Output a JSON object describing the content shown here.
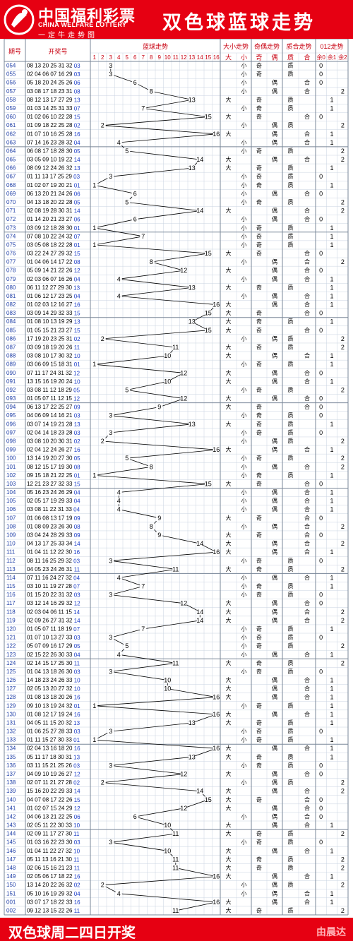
{
  "header": {
    "logo_cn": "中国福利彩票",
    "logo_en": "CHINA WELFARE LOTTERY",
    "logo_sub": "一定牛走势图",
    "title": "双色球蓝球走势"
  },
  "columns": {
    "period": "期号",
    "numbers": "开奖号",
    "blue_trend": "蓝球走势",
    "size_trend": "大小走势",
    "parity_trend": "奇偶走势",
    "prime_trend": "质合走势",
    "mod3_trend": "012走势",
    "big": "大",
    "small": "小",
    "odd": "奇",
    "even": "偶",
    "prime": "质",
    "composite": "合",
    "rem0": "余0",
    "rem1": "余1",
    "rem2": "余2"
  },
  "ball_headers": [
    "1",
    "2",
    "3",
    "4",
    "5",
    "6",
    "7",
    "8",
    "9",
    "10",
    "11",
    "12",
    "13",
    "14",
    "15",
    "16"
  ],
  "rows": [
    {
      "p": "054",
      "n": "08 13 20 25 31 32",
      "b": 3
    },
    {
      "p": "055",
      "n": "02 04 06 07 16 29",
      "b": 3
    },
    {
      "p": "056",
      "n": "05 18 20 24 25 26",
      "b": 6
    },
    {
      "p": "057",
      "n": "03 08 17 18 23 31",
      "b": 8
    },
    {
      "p": "058",
      "n": "08 12 13 17 27 29",
      "b": 13
    },
    {
      "p": "059",
      "n": "01 03 14 25 31 33",
      "b": 7
    },
    {
      "p": "060",
      "n": "01 02 06 10 22 28",
      "b": 15
    },
    {
      "p": "061",
      "n": "01 09 18 22 25 28",
      "b": 2
    },
    {
      "p": "062",
      "n": "01 07 10 16 25 28",
      "b": 16
    },
    {
      "p": "063",
      "n": "07 14 16 23 28 32",
      "b": 4
    },
    {
      "p": "064",
      "n": "06 08 17 18 28 30",
      "b": 5
    },
    {
      "p": "065",
      "n": "03 05 09 10 19 22",
      "b": 14
    },
    {
      "p": "066",
      "n": "08 09 12 24 26 32",
      "b": 13
    },
    {
      "p": "067",
      "n": "01 11 13 17 25 29",
      "b": 3
    },
    {
      "p": "068",
      "n": "01 02 07 19 20 21",
      "b": 1
    },
    {
      "p": "069",
      "n": "06 13 20 21 24 26",
      "b": 6
    },
    {
      "p": "070",
      "n": "04 13 18 20 22 28",
      "b": 5
    },
    {
      "p": "071",
      "n": "02 08 19 28 30 31",
      "b": 14
    },
    {
      "p": "072",
      "n": "01 14 20 21 23 27",
      "b": 6
    },
    {
      "p": "073",
      "n": "03 09 12 18 28 30",
      "b": 1
    },
    {
      "p": "074",
      "n": "07 08 10 22 24 32",
      "b": 7
    },
    {
      "p": "075",
      "n": "03 05 08 18 22 28",
      "b": 1
    },
    {
      "p": "076",
      "n": "03 22 24 27 29 32",
      "b": 15
    },
    {
      "p": "077",
      "n": "01 04 06 14 17 22",
      "b": 8
    },
    {
      "p": "078",
      "n": "05 09 14 21 22 26",
      "b": 12
    },
    {
      "p": "079",
      "n": "02 03 06 07 16 26",
      "b": 4
    },
    {
      "p": "080",
      "n": "06 11 12 27 29 30",
      "b": 13
    },
    {
      "p": "081",
      "n": "01 06 12 17 23 25",
      "b": 4
    },
    {
      "p": "082",
      "n": "01 02 03 12 16 27",
      "b": 16
    },
    {
      "p": "083",
      "n": "03 09 14 29 32 33",
      "b": 15
    },
    {
      "p": "084",
      "n": "01 08 10 13 19 29",
      "b": 13
    },
    {
      "p": "085",
      "n": "01 05 15 21 23 27",
      "b": 15
    },
    {
      "p": "086",
      "n": "17 19 20 23 25 31",
      "b": 2
    },
    {
      "p": "087",
      "n": "03 09 18 19 20 26",
      "b": 11
    },
    {
      "p": "088",
      "n": "03 08 10 17 30 32",
      "b": 10
    },
    {
      "p": "089",
      "n": "03 06 09 15 18 31",
      "b": 1
    },
    {
      "p": "090",
      "n": "07 11 17 24 31 32",
      "b": 12
    },
    {
      "p": "091",
      "n": "13 15 16 19 20 24",
      "b": 10
    },
    {
      "p": "092",
      "n": "03 08 11 12 18 29",
      "b": 5
    },
    {
      "p": "093",
      "n": "01 05 07 11 12 15",
      "b": 12
    },
    {
      "p": "094",
      "n": "06 13 17 22 25 27",
      "b": 9
    },
    {
      "p": "095",
      "n": "04 06 09 14 16 21",
      "b": 3
    },
    {
      "p": "096",
      "n": "03 07 14 19 21 28",
      "b": 13
    },
    {
      "p": "097",
      "n": "02 04 14 18 23 28",
      "b": 3
    },
    {
      "p": "098",
      "n": "03 08 10 20 30 31",
      "b": 2
    },
    {
      "p": "099",
      "n": "02 04 12 24 26 27",
      "b": 16
    },
    {
      "p": "100",
      "n": "13 14 19 20 27 30",
      "b": 5
    },
    {
      "p": "101",
      "n": "08 12 15 17 19 30",
      "b": 8
    },
    {
      "p": "102",
      "n": "09 15 18 21 22 25",
      "b": 1
    },
    {
      "p": "103",
      "n": "12 21 23 27 32 33",
      "b": 15
    },
    {
      "p": "104",
      "n": "05 16 23 24 26 29",
      "b": 4
    },
    {
      "p": "105",
      "n": "02 05 17 19 29 33",
      "b": 4
    },
    {
      "p": "106",
      "n": "03 08 11 22 31 33",
      "b": 4
    },
    {
      "p": "107",
      "n": "01 06 08 13 17 19",
      "b": 9
    },
    {
      "p": "108",
      "n": "01 08 09 23 26 30",
      "b": 8
    },
    {
      "p": "109",
      "n": "03 04 24 28 29 33",
      "b": 9
    },
    {
      "p": "110",
      "n": "04 13 17 25 33 34",
      "b": 14
    },
    {
      "p": "111",
      "n": "01 04 11 12 22 30",
      "b": 16
    },
    {
      "p": "112",
      "n": "08 11 16 25 29 32",
      "b": 3
    },
    {
      "p": "113",
      "n": "04 05 23 24 26 31",
      "b": 11
    },
    {
      "p": "114",
      "n": "07 11 16 24 27 32",
      "b": 4
    },
    {
      "p": "115",
      "n": "03 10 11 19 27 28",
      "b": 7
    },
    {
      "p": "116",
      "n": "01 15 20 22 31 32",
      "b": 3
    },
    {
      "p": "117",
      "n": "03 12 14 16 29 32",
      "b": 12
    },
    {
      "p": "118",
      "n": "02 03 04 06 11 15",
      "b": 14
    },
    {
      "p": "119",
      "n": "02 09 26 27 31 32",
      "b": 14
    },
    {
      "p": "120",
      "n": "01 05 07 11 18 19",
      "b": 7
    },
    {
      "p": "121",
      "n": "01 07 10 13 27 33",
      "b": 3
    },
    {
      "p": "122",
      "n": "05 07 09 16 17 29",
      "b": 5
    },
    {
      "p": "123",
      "n": "02 15 22 26 30 33",
      "b": 4
    },
    {
      "p": "124",
      "n": "02 14 15 17 25 30",
      "b": 11
    },
    {
      "p": "125",
      "n": "01 04 13 18 26 30",
      "b": 3
    },
    {
      "p": "126",
      "n": "14 18 23 24 26 33",
      "b": 10
    },
    {
      "p": "127",
      "n": "02 05 13 20 27 32",
      "b": 10
    },
    {
      "p": "128",
      "n": "01 08 13 18 20 26",
      "b": 16
    },
    {
      "p": "129",
      "n": "09 10 13 19 24 32",
      "b": 1
    },
    {
      "p": "130",
      "n": "01 08 12 17 19 24",
      "b": 16
    },
    {
      "p": "131",
      "n": "04 05 11 15 20 32",
      "b": 13
    },
    {
      "p": "132",
      "n": "01 06 25 27 28 33",
      "b": 3
    },
    {
      "p": "133",
      "n": "01 11 15 27 30 33",
      "b": 1
    },
    {
      "p": "134",
      "n": "02 04 13 16 18 20",
      "b": 16
    },
    {
      "p": "135",
      "n": "05 11 17 18 30 31",
      "b": 13
    },
    {
      "p": "136",
      "n": "03 11 15 21 25 26",
      "b": 3
    },
    {
      "p": "137",
      "n": "04 09 10 19 26 27",
      "b": 12
    },
    {
      "p": "138",
      "n": "02 07 11 21 27 28",
      "b": 2
    },
    {
      "p": "139",
      "n": "15 16 20 22 29 33",
      "b": 14
    },
    {
      "p": "140",
      "n": "04 07 08 17 22 26",
      "b": 15
    },
    {
      "p": "141",
      "n": "01 02 07 15 24 29",
      "b": 12
    },
    {
      "p": "142",
      "n": "04 06 13 21 22 25",
      "b": 6
    },
    {
      "p": "143",
      "n": "02 05 11 22 30 33",
      "b": 10
    },
    {
      "p": "144",
      "n": "02 09 11 17 27 30",
      "b": 11
    },
    {
      "p": "145",
      "n": "01 03 16 22 23 30",
      "b": 3
    },
    {
      "p": "146",
      "n": "01 04 11 22 27 32",
      "b": 10
    },
    {
      "p": "147",
      "n": "05 11 13 16 21 30",
      "b": 11
    },
    {
      "p": "148",
      "n": "02 06 15 16 21 23",
      "b": 11
    },
    {
      "p": "149",
      "n": "02 05 06 17 18 22",
      "b": 16
    },
    {
      "p": "150",
      "n": "13 14 20 22 26 32",
      "b": 2
    },
    {
      "p": "151",
      "n": "05 10 16 19 29 32",
      "b": 4
    },
    {
      "p": "001",
      "n": "03 07 17 18 22 33",
      "b": 16
    },
    {
      "p": "002",
      "n": "09 12 13 15 22 26",
      "b": 11
    }
  ],
  "footer": {
    "text": "双色球周二四日开奖",
    "watermark": "由晨达"
  },
  "colors": {
    "brand_red": "#e60012",
    "header_text": "#c80010",
    "period_blue": "#1f3fa8",
    "blue_ball": "#1a3cc8",
    "grid": "#c9d3e0",
    "section": "#7a8798",
    "trend_line": "#000000"
  }
}
